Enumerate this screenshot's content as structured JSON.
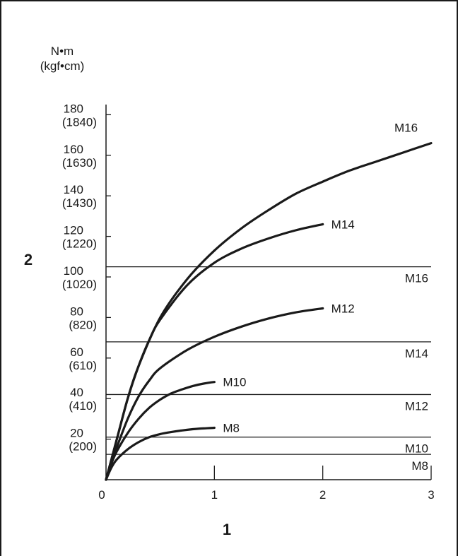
{
  "chart_data": {
    "type": "line",
    "ylabel_unit": "N•m",
    "ylabel_unit_alt": "(kgf•cm)",
    "ylabel": "2",
    "xlabel": "1",
    "xlim": [
      0,
      3
    ],
    "ylim": [
      0,
      185
    ],
    "x_ticks": [
      {
        "value": 0,
        "label": "0"
      },
      {
        "value": 1,
        "label": "1"
      },
      {
        "value": 2,
        "label": "2"
      },
      {
        "value": 3,
        "label": "3"
      }
    ],
    "y_ticks": [
      {
        "value": 20,
        "label": "20",
        "alt": "(200)"
      },
      {
        "value": 40,
        "label": "40",
        "alt": "(410)"
      },
      {
        "value": 60,
        "label": "60",
        "alt": "(610)"
      },
      {
        "value": 80,
        "label": "80",
        "alt": "(820)"
      },
      {
        "value": 100,
        "label": "100",
        "alt": "(1020)"
      },
      {
        "value": 120,
        "label": "120",
        "alt": "(1220)"
      },
      {
        "value": 140,
        "label": "140",
        "alt": "(1430)"
      },
      {
        "value": 160,
        "label": "160",
        "alt": "(1630)"
      },
      {
        "value": 180,
        "label": "180",
        "alt": "(1840)"
      }
    ],
    "series": [
      {
        "name": "M8",
        "x": [
          0,
          0.05,
          0.1,
          0.2,
          0.3,
          0.4,
          0.5,
          0.6,
          0.7,
          0.8,
          0.9,
          1.0
        ],
        "y": [
          0,
          6,
          10,
          15,
          18.5,
          21,
          22.5,
          23.5,
          24.3,
          24.9,
          25.3,
          25.6
        ]
      },
      {
        "name": "M10",
        "x": [
          0,
          0.05,
          0.1,
          0.2,
          0.3,
          0.4,
          0.5,
          0.6,
          0.7,
          0.8,
          0.9,
          1.0
        ],
        "y": [
          0,
          8,
          14,
          23,
          30,
          35.5,
          39.5,
          42.5,
          44.5,
          46.2,
          47.4,
          48.2
        ]
      },
      {
        "name": "M12",
        "x": [
          0,
          0.05,
          0.1,
          0.2,
          0.3,
          0.4,
          0.5,
          0.75,
          1.0,
          1.25,
          1.5,
          1.75,
          2.0
        ],
        "y": [
          0,
          8,
          16,
          30,
          41,
          49,
          55,
          64,
          70.5,
          75.5,
          79.5,
          82.5,
          84.5
        ]
      },
      {
        "name": "M14",
        "x": [
          0,
          0.05,
          0.1,
          0.2,
          0.3,
          0.4,
          0.5,
          0.75,
          1.0,
          1.25,
          1.5,
          1.75,
          2.0
        ],
        "y": [
          0,
          10,
          20,
          40,
          56,
          69,
          79,
          96,
          107,
          114,
          119,
          123,
          126
        ]
      },
      {
        "name": "M16",
        "x": [
          0,
          0.05,
          0.1,
          0.2,
          0.3,
          0.5,
          0.75,
          1.0,
          1.25,
          1.5,
          1.75,
          2.0,
          2.25,
          2.5,
          2.75,
          3.0
        ],
        "y": [
          0,
          10,
          20,
          40,
          56,
          80,
          99,
          113,
          124,
          133,
          141,
          147,
          152.5,
          157,
          161.5,
          166
        ]
      }
    ],
    "reference_lines": [
      {
        "name": "M8",
        "y": 12.5
      },
      {
        "name": "M10",
        "y": 21
      },
      {
        "name": "M12",
        "y": 42
      },
      {
        "name": "M14",
        "y": 68
      },
      {
        "name": "M16",
        "y": 105
      }
    ]
  }
}
